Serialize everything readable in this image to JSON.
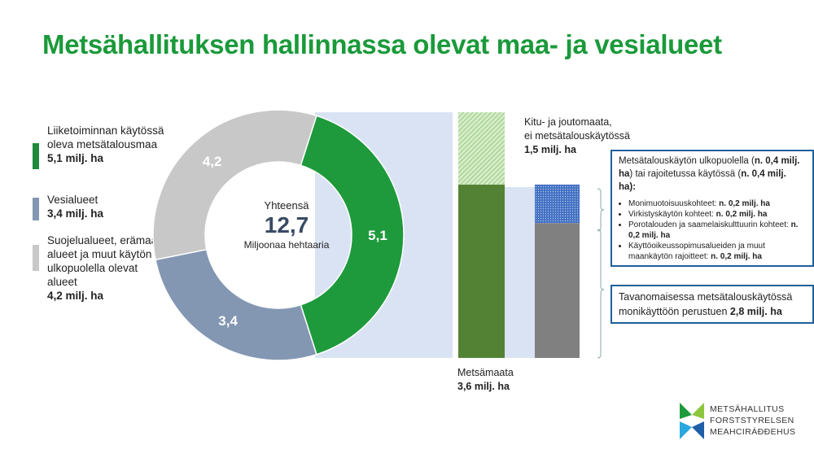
{
  "title": "Metsähallituksen hallinnassa olevat maa- ja vesialueet",
  "chart_data": {
    "type": "pie",
    "donut": true,
    "center": {
      "label": "Yhteensä",
      "value": "12,7",
      "unit": "Miljoonaa hehtaaria"
    },
    "slices": [
      {
        "label": "5,1",
        "value": 5.1,
        "color": "#1e9a3c"
      },
      {
        "label": "3,4",
        "value": 3.4,
        "color": "#8397b3"
      },
      {
        "label": "4,2",
        "value": 4.2,
        "color": "#c8c8c8"
      }
    ],
    "legend": [
      {
        "text": "Liiketoiminnan käytössä oleva metsätalousmaa",
        "value": "5,1 milj. ha",
        "color": "#1e8a3c"
      },
      {
        "text": "Vesialueet",
        "value": "3,4 milj. ha",
        "color": "#8397b3"
      },
      {
        "text": "Suojelualueet, erämaa-alueet ja muut käytön ulkopuolella olevat alueet",
        "value": "4,2 milj. ha",
        "color": "#c8c8c8"
      }
    ],
    "breakdown_bar1": [
      {
        "name": "Metsämaata",
        "value": 3.6,
        "label": "3,6 milj. ha",
        "color": "#548235"
      },
      {
        "name": "Kitu- ja joutomaata, ei metsätalouskäytössä",
        "value": 1.5,
        "label": "1,5 milj. ha",
        "color": "#a9d18e"
      }
    ],
    "breakdown_bar2": [
      {
        "name": "Tavanomaisessa metsätalouskäytössä",
        "value": 2.8,
        "color": "#808080"
      },
      {
        "name": "Metsätalouskäytön ulkopuolella / rajoitetussa käytössä",
        "value": 0.8,
        "color": "#4472c4"
      }
    ]
  },
  "labels": {
    "kitu_1": "Kitu- ja joutomaata,",
    "kitu_2": "ei metsätalouskäytössä",
    "kitu_val": "1,5 milj. ha",
    "metsa": "Metsämaata",
    "metsa_val": "3,6 milj. ha"
  },
  "box1": {
    "t1": "Metsätalouskäytön ulkopuolella (",
    "b1": "n. 0,4 milj. ha",
    "t2": ") tai rajoitetussa käytössä (",
    "b2": "n. 0,4 milj. ha",
    "t3": "):",
    "items": [
      {
        "t": "Monimuotoisuuskohteet: ",
        "b": "n. 0,2 milj. ha"
      },
      {
        "t": "Virkistyskäytön kohteet: ",
        "b": "n. 0,2 milj. ha"
      },
      {
        "t": "Porotalouden ja saamelaiskulttuurin kohteet: ",
        "b": "n. 0,2 milj. ha"
      },
      {
        "t": "Käyttöoikeussopimusalueiden ja muut maankäytön rajoitteet: ",
        "b": "n. 0,2 milj. ha"
      }
    ]
  },
  "box2": {
    "t": "Tavanomaisessa metsätalouskäytössä monikäyttöön perustuen ",
    "b": "2,8 milj. ha"
  },
  "logo": {
    "lines": [
      "METSÄHALLITUS",
      "FORSTSTYRELSEN",
      "MEAHCIRÁĐĐEHUS"
    ]
  }
}
